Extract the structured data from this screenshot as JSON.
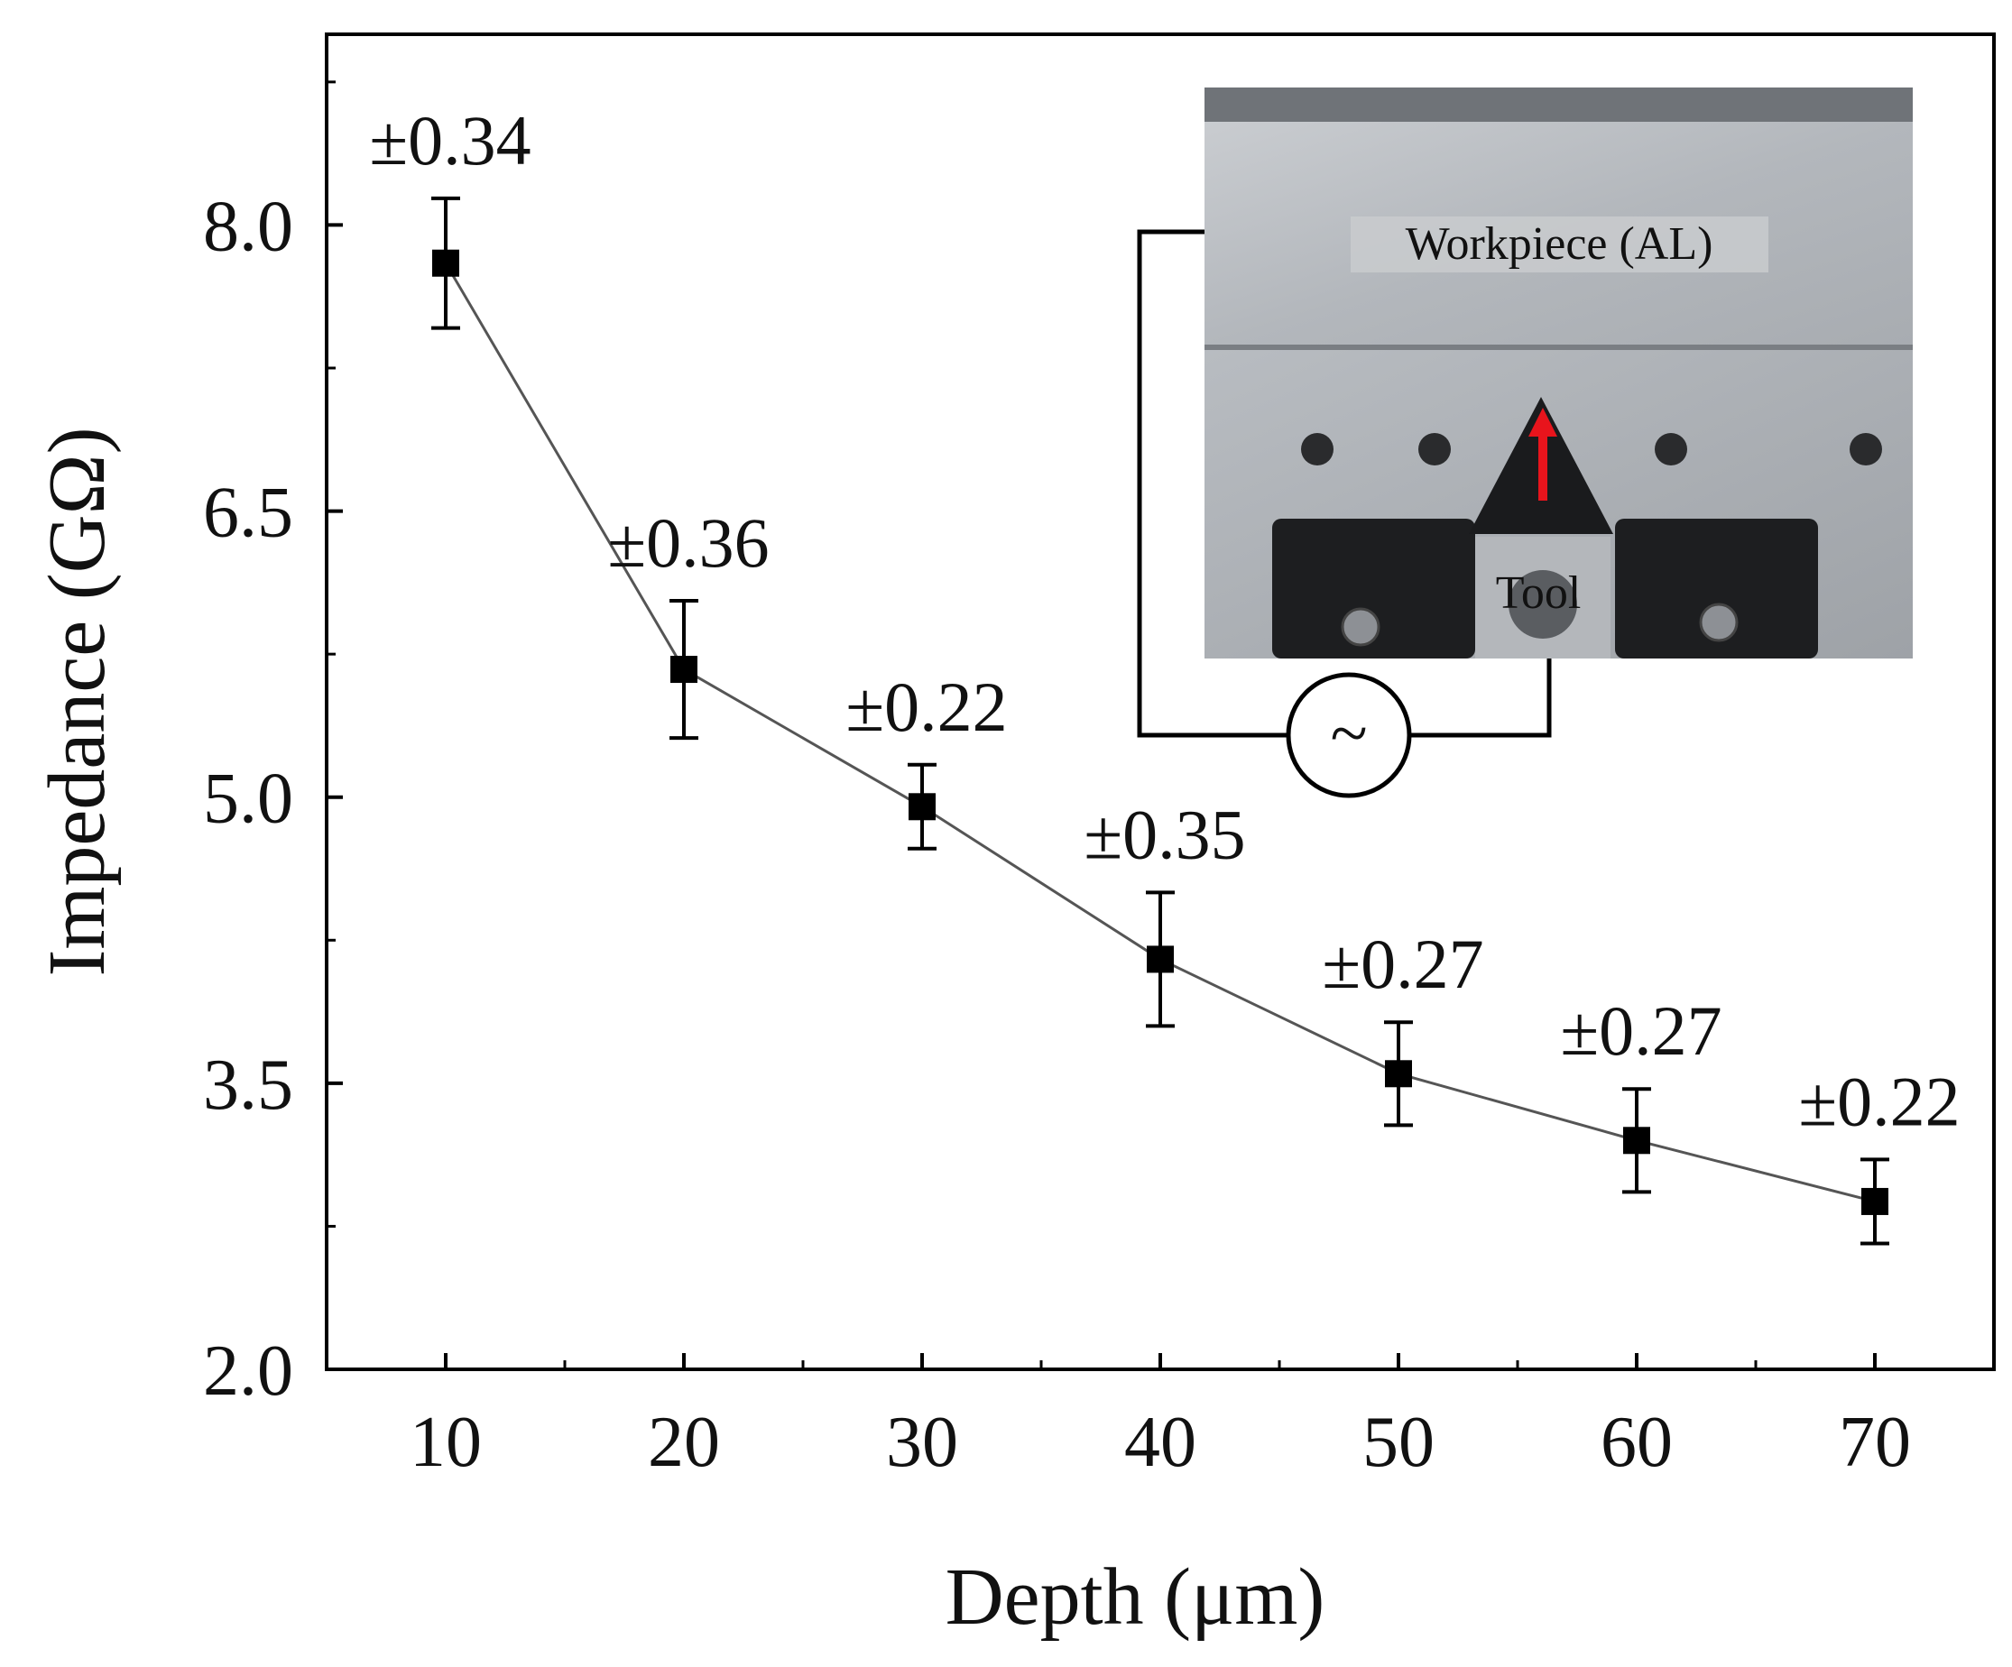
{
  "chart_data": {
    "type": "line",
    "xlabel": "Depth (μm)",
    "ylabel": "Impedance (GΩ)",
    "xlim": [
      5,
      75
    ],
    "ylim": [
      2.0,
      9.0
    ],
    "x_ticks": [
      "10",
      "20",
      "30",
      "40",
      "50",
      "60",
      "70"
    ],
    "y_ticks": [
      "2.0",
      "3.5",
      "5.0",
      "6.5",
      "8.0"
    ],
    "grid": false,
    "series": [
      {
        "x": [
          10,
          20,
          30,
          40,
          50,
          60,
          70
        ],
        "values": [
          7.8,
          5.67,
          4.95,
          4.15,
          3.55,
          3.2,
          2.88
        ],
        "errors": [
          0.34,
          0.36,
          0.22,
          0.35,
          0.27,
          0.27,
          0.22
        ],
        "error_labels": [
          "±0.34",
          "±0.36",
          "±0.22",
          "±0.35",
          "±0.27",
          "±0.27",
          "±0.22"
        ],
        "marker": "square",
        "color": "#000000",
        "line_color": "#555555"
      }
    ]
  },
  "inset": {
    "workpiece_label": "Workpiece (AL)",
    "tool_label": "Tool",
    "ac_source_symbol": "~",
    "arrow_color": "#e8141c"
  }
}
